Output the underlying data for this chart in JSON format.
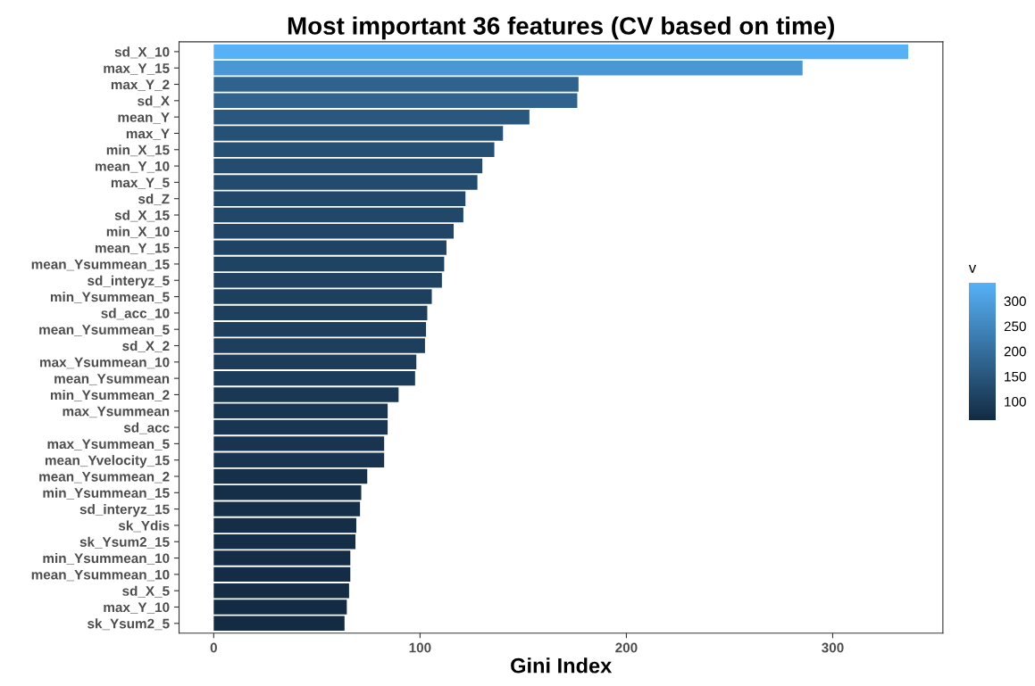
{
  "chart_data": {
    "type": "bar",
    "orientation": "horizontal",
    "title": "Most important 36 features (CV based on time)",
    "xlabel": "Gini Index",
    "legend_title": "v",
    "categories": [
      "sd_X_10",
      "max_Y_15",
      "max_Y_2",
      "sd_X",
      "mean_Y",
      "max_Y",
      "min_X_15",
      "mean_Y_10",
      "max_Y_5",
      "sd_Z",
      "sd_X_15",
      "min_X_10",
      "mean_Y_15",
      "mean_Ysummean_15",
      "sd_interyz_5",
      "min_Ysummean_5",
      "sd_acc_10",
      "mean_Ysummean_5",
      "sd_X_2",
      "max_Ysummean_10",
      "mean_Ysummean",
      "min_Ysummean_2",
      "max_Ysummean",
      "sd_acc",
      "max_Ysummean_5",
      "mean_Yvelocity_15",
      "mean_Ysummean_2",
      "min_Ysummean_15",
      "sd_interyz_15",
      "sk_Ydis",
      "sk_Ysum2_15",
      "min_Ysummean_10",
      "mean_Ysummean_10",
      "sd_X_5",
      "max_Y_10",
      "sk_Ysum2_5"
    ],
    "values": [
      336.6,
      285.4,
      176.8,
      176.2,
      153,
      140.2,
      136,
      130.2,
      127.8,
      122,
      121,
      116.3,
      112.8,
      111.7,
      110.6,
      105.7,
      103.5,
      102.9,
      102.4,
      98.2,
      97.6,
      89.6,
      84.3,
      84.3,
      82.6,
      82.6,
      74.4,
      71.5,
      70.9,
      69.1,
      68.7,
      66.2,
      66.2,
      65.6,
      64.5,
      63.4
    ],
    "colors": [
      "#56b1f7",
      "#4998d5",
      "#2f638e",
      "#2f628d",
      "#29577e",
      "#265176",
      "#254f73",
      "#234c6f",
      "#234b6d",
      "#21486a",
      "#214769",
      "#204566",
      "#1f4364",
      "#1f4363",
      "#1f4262",
      "#1d405f",
      "#1d3f5d",
      "#1d3e5d",
      "#1d3e5d",
      "#1c3c5a",
      "#1b3c5a",
      "#193854",
      "#183551",
      "#183551",
      "#183450",
      "#183450",
      "#16304a",
      "#152f48",
      "#152f48",
      "#142e47",
      "#142e47",
      "#142c45",
      "#142c45",
      "#142c44",
      "#132b44",
      "#132b43"
    ],
    "xlim": [
      -16.8,
      353.4
    ],
    "xticks": [
      0,
      100,
      200,
      300
    ],
    "clim": [
      63.4,
      336.6
    ],
    "cticks": [
      100,
      150,
      200,
      250,
      300
    ],
    "grid": false
  }
}
